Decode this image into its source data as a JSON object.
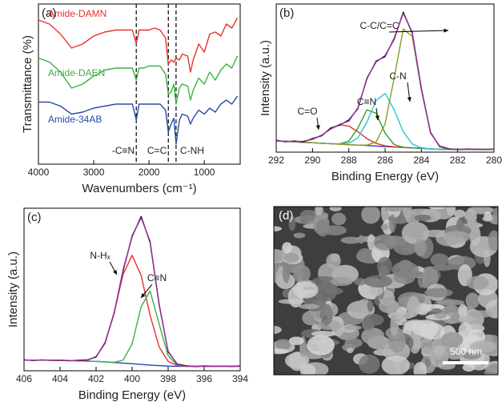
{
  "chart_data": [
    {
      "type": "line",
      "panel_label": "(a)",
      "xlabel": "Wavenumbers (cm⁻¹)",
      "ylabel": "Transmittance (%)",
      "xlim": [
        4000,
        350
      ],
      "xticks": [
        4000,
        3000,
        2000,
        1000
      ],
      "ylim": [
        20,
        100
      ],
      "x": [
        4000,
        3800,
        3600,
        3400,
        3200,
        3000,
        2800,
        2600,
        2400,
        2300,
        2230,
        2180,
        2100,
        2000,
        1900,
        1800,
        1700,
        1650,
        1600,
        1550,
        1510,
        1450,
        1400,
        1300,
        1250,
        1200,
        1100,
        1000,
        900,
        800,
        700,
        600,
        500,
        400
      ],
      "series": [
        {
          "name": "Amide-DAMN",
          "color": "#e8312f",
          "values": [
            92,
            90,
            85,
            78,
            80,
            84,
            86,
            87,
            87,
            87,
            80,
            87,
            87,
            87,
            88,
            87,
            83,
            70,
            72,
            71,
            73,
            72,
            75,
            74,
            66,
            72,
            80,
            76,
            85,
            86,
            84,
            90,
            88,
            93
          ]
        },
        {
          "name": "Amide-DAEN",
          "color": "#3cb043",
          "values": [
            73,
            71,
            66,
            58,
            60,
            64,
            67,
            68,
            68,
            68,
            62,
            68,
            68,
            69,
            69,
            69,
            65,
            55,
            56,
            60,
            50,
            58,
            60,
            59,
            52,
            57,
            63,
            60,
            66,
            62,
            67,
            70,
            68,
            74
          ]
        },
        {
          "name": "Amide-34AB",
          "color": "#2b4aa8",
          "values": [
            51,
            51,
            49,
            45,
            46,
            48,
            49,
            50,
            50,
            50,
            42,
            50,
            50,
            50,
            50,
            50,
            47,
            36,
            40,
            43,
            30,
            42,
            45,
            44,
            40,
            43,
            47,
            45,
            48,
            46,
            50,
            52,
            50,
            54
          ]
        }
      ],
      "markers": [
        {
          "x": 2230,
          "label": "-C≡N"
        },
        {
          "x": 1650,
          "label": "C=C"
        },
        {
          "x": 1510,
          "label": "C-NH"
        }
      ]
    },
    {
      "type": "line",
      "panel_label": "(b)",
      "xlabel": "Binding Energy (eV)",
      "ylabel": "Intensity (a.u.)",
      "xlim": [
        292,
        280
      ],
      "xticks": [
        292,
        290,
        288,
        286,
        284,
        282,
        280
      ],
      "ylim": [
        0,
        105
      ],
      "x": [
        292,
        291.5,
        291,
        290.5,
        290,
        289.5,
        289,
        288.5,
        288,
        287.5,
        287,
        286.5,
        286,
        285.5,
        285,
        284.5,
        284,
        283.5,
        283,
        282.5,
        282,
        281.5,
        281,
        280.5,
        280
      ],
      "series": [
        {
          "color": "#2b3fbf",
          "values": [
            8,
            7.7,
            7.3,
            7,
            6.7,
            6.3,
            6,
            5.7,
            5.3,
            5,
            4.7,
            4.3,
            4,
            3.7,
            3.3,
            3,
            2.7,
            2.3,
            2,
            2,
            2,
            2,
            2,
            2,
            2
          ]
        },
        {
          "color": "#e8312f",
          "values": [
            8,
            7.8,
            7.5,
            7.7,
            9.1,
            12,
            16.4,
            19.4,
            18.5,
            14.4,
            9.6,
            6.2,
            4.5,
            3.8,
            3.3,
            3,
            2.7,
            2.3,
            2,
            2,
            2,
            2,
            2,
            2,
            2
          ]
        },
        {
          "color": "#2ca02c",
          "values": [
            8,
            7.7,
            7.3,
            7,
            6.7,
            6.3,
            6,
            5.9,
            7.8,
            17,
            30,
            27.6,
            13.4,
            5.4,
            3.4,
            3,
            2.7,
            2.3,
            2,
            2,
            2,
            2,
            2,
            2,
            2
          ]
        },
        {
          "color": "#2ec4d6",
          "values": [
            8,
            7.7,
            7.3,
            7,
            6.7,
            6.3,
            6,
            5.8,
            6.3,
            10.1,
            21.3,
            36.6,
            41.6,
            30,
            14.4,
            5.8,
            3.1,
            2.3,
            2,
            2,
            2,
            2,
            2,
            2,
            2
          ]
        },
        {
          "color": "#8a9a2a",
          "values": [
            8,
            7.7,
            7.3,
            7,
            6.7,
            6.3,
            6,
            5.7,
            5.3,
            5,
            5,
            7.2,
            20,
            52.7,
            87.3,
            82,
            44,
            14.2,
            3.9,
            2.1,
            2,
            2,
            2,
            2,
            2
          ]
        },
        {
          "color": "#000000",
          "values": [
            8.4,
            7.3,
            7.9,
            7.2,
            9.6,
            11.6,
            17.1,
            19.2,
            22.8,
            30.9,
            52.4,
            64.1,
            68.3,
            80.1,
            99.2,
            84.1,
            45.1,
            13.8,
            4.3,
            2.4,
            1.8,
            2.2,
            2,
            1.9,
            2.1
          ]
        },
        {
          "color": "#9b30a0",
          "values": [
            8,
            7.7,
            7.5,
            7.7,
            9.1,
            12,
            16.4,
            19.7,
            22,
            31.5,
            51.8,
            64.7,
            67.5,
            80.8,
            98.5,
            84.8,
            44.4,
            14.2,
            3.9,
            2.1,
            2,
            2,
            2,
            2,
            2
          ]
        }
      ],
      "annotations": [
        "C=O",
        "C≡N",
        "C-N",
        "C-C/C=C"
      ]
    },
    {
      "type": "line",
      "panel_label": "(c)",
      "xlabel": "Binding Energy (eV)",
      "ylabel": "Intensity (a.u.)",
      "xlim": [
        406,
        394
      ],
      "xticks": [
        406,
        404,
        402,
        400,
        398,
        396,
        394
      ],
      "ylim": [
        -3,
        105
      ],
      "x": [
        406,
        405.5,
        405,
        404.5,
        404,
        403.5,
        403,
        402.5,
        402,
        401.5,
        401,
        400.5,
        400,
        399.5,
        399,
        398.5,
        398,
        397.5,
        397,
        396.5,
        396,
        395.5,
        395,
        394.5,
        394
      ],
      "series": [
        {
          "color": "#2b3fbf",
          "values": [
            4,
            4,
            4,
            4,
            3.9,
            3.8,
            3.6,
            3.4,
            3.2,
            2.9,
            2.5,
            2.1,
            1.7,
            1.2,
            0.8,
            0.4,
            0.1,
            0,
            0,
            0,
            0,
            0,
            0,
            0,
            0
          ]
        },
        {
          "color": "#e8312f",
          "values": [
            4,
            4,
            4,
            4,
            3.9,
            3.8,
            3.6,
            3.9,
            6.4,
            15.3,
            35.5,
            61.1,
            73.7,
            60.2,
            33.8,
            12.8,
            3.3,
            0.5,
            0,
            0,
            0,
            0,
            0,
            0,
            0
          ]
        },
        {
          "color": "#3cb043",
          "values": [
            4,
            4,
            4,
            4,
            3.9,
            3.8,
            3.6,
            3.4,
            3.2,
            2.9,
            2.6,
            4.1,
            14.8,
            39.6,
            50,
            28,
            6.9,
            0.7,
            0,
            0,
            0,
            0,
            0,
            0,
            0
          ]
        },
        {
          "color": "#000000",
          "values": [
            4.3,
            3.8,
            4.2,
            3.9,
            4.1,
            3.6,
            3.9,
            4.2,
            6.1,
            15.8,
            35.1,
            64,
            86.1,
            99.5,
            82.2,
            41.1,
            9.6,
            1.5,
            0.3,
            -0.2,
            0.2,
            0,
            0.1,
            -0.1,
            0.2
          ]
        },
        {
          "color": "#9b30a0",
          "values": [
            4,
            4,
            4,
            4,
            3.9,
            3.8,
            3.6,
            3.9,
            6.4,
            15.3,
            35.6,
            63.1,
            86.8,
            98.6,
            83,
            40.4,
            10.1,
            1.2,
            0,
            0,
            0,
            0,
            0,
            0,
            0
          ]
        }
      ],
      "annotations": [
        "N-Hₓ",
        "C≡N"
      ]
    }
  ],
  "image": {
    "panel_label": "(d)",
    "scale_bar": "500 nm"
  }
}
